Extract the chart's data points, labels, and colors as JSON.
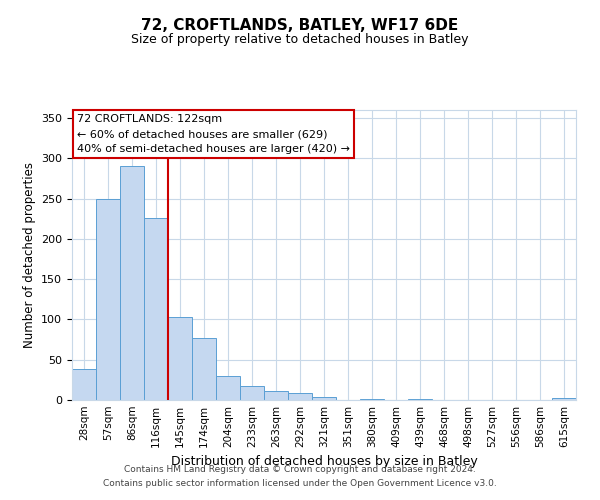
{
  "title": "72, CROFTLANDS, BATLEY, WF17 6DE",
  "subtitle": "Size of property relative to detached houses in Batley",
  "xlabel": "Distribution of detached houses by size in Batley",
  "ylabel": "Number of detached properties",
  "bar_labels": [
    "28sqm",
    "57sqm",
    "86sqm",
    "116sqm",
    "145sqm",
    "174sqm",
    "204sqm",
    "233sqm",
    "263sqm",
    "292sqm",
    "321sqm",
    "351sqm",
    "380sqm",
    "409sqm",
    "439sqm",
    "468sqm",
    "498sqm",
    "527sqm",
    "556sqm",
    "586sqm",
    "615sqm"
  ],
  "bar_values": [
    39,
    250,
    291,
    226,
    103,
    77,
    30,
    18,
    11,
    9,
    4,
    0,
    1,
    0,
    1,
    0,
    0,
    0,
    0,
    0,
    2
  ],
  "bar_color": "#c5d8f0",
  "bar_edgecolor": "#5a9fd4",
  "vline_color": "#cc0000",
  "annotation_title": "72 CROFTLANDS: 122sqm",
  "annotation_line1": "← 60% of detached houses are smaller (629)",
  "annotation_line2": "40% of semi-detached houses are larger (420) →",
  "annotation_box_edgecolor": "#cc0000",
  "ylim": [
    0,
    360
  ],
  "yticks": [
    0,
    50,
    100,
    150,
    200,
    250,
    300,
    350
  ],
  "footer_line1": "Contains HM Land Registry data © Crown copyright and database right 2024.",
  "footer_line2": "Contains public sector information licensed under the Open Government Licence v3.0.",
  "background_color": "#ffffff",
  "grid_color": "#c8d8e8"
}
